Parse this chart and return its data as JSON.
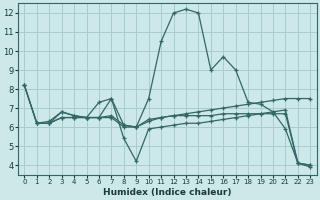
{
  "xlabel": "Humidex (Indice chaleur)",
  "bg_color": "#cce8e8",
  "grid_color": "#aacccc",
  "line_color": "#336666",
  "xlim": [
    -0.5,
    23.5
  ],
  "ylim": [
    3.5,
    12.5
  ],
  "xticks": [
    0,
    1,
    2,
    3,
    4,
    5,
    6,
    7,
    8,
    9,
    10,
    11,
    12,
    13,
    14,
    15,
    16,
    17,
    18,
    19,
    20,
    21,
    22,
    23
  ],
  "yticks": [
    4,
    5,
    6,
    7,
    8,
    9,
    10,
    11,
    12
  ],
  "lines": [
    {
      "x": [
        0,
        1,
        2,
        3,
        4,
        5,
        6,
        7,
        8,
        9,
        10,
        11,
        12,
        13,
        14,
        15,
        16,
        17,
        18,
        19,
        20,
        21,
        22,
        23
      ],
      "y": [
        8.2,
        6.2,
        6.2,
        6.8,
        6.6,
        6.5,
        6.5,
        7.5,
        6.1,
        6.0,
        7.5,
        10.5,
        12.0,
        12.2,
        12.0,
        9.0,
        9.7,
        9.0,
        7.3,
        7.2,
        6.8,
        5.9,
        4.1,
        3.9
      ]
    },
    {
      "x": [
        0,
        1,
        2,
        3,
        4,
        5,
        6,
        7,
        8,
        9,
        10,
        11,
        12,
        13,
        14,
        15,
        16,
        17,
        18,
        19,
        20,
        21,
        22,
        23
      ],
      "y": [
        8.2,
        6.2,
        6.2,
        6.5,
        6.5,
        6.5,
        6.5,
        6.6,
        6.1,
        6.0,
        6.3,
        6.5,
        6.6,
        6.7,
        6.8,
        6.9,
        7.0,
        7.1,
        7.2,
        7.3,
        7.4,
        7.5,
        7.5,
        7.5
      ]
    },
    {
      "x": [
        0,
        1,
        2,
        3,
        4,
        5,
        6,
        7,
        8,
        9,
        10,
        11,
        12,
        13,
        14,
        15,
        16,
        17,
        18,
        19,
        20,
        21,
        22,
        23
      ],
      "y": [
        8.2,
        6.2,
        6.3,
        6.8,
        6.6,
        6.5,
        7.3,
        7.5,
        5.4,
        4.2,
        5.9,
        6.0,
        6.1,
        6.2,
        6.2,
        6.3,
        6.4,
        6.5,
        6.6,
        6.7,
        6.8,
        6.9,
        4.1,
        4.0
      ]
    },
    {
      "x": [
        2,
        3,
        4,
        5,
        6,
        7,
        8,
        9,
        10,
        11,
        12,
        13,
        14,
        15,
        16,
        17,
        18,
        19,
        20,
        21,
        22,
        23
      ],
      "y": [
        6.2,
        6.5,
        6.5,
        6.5,
        6.5,
        6.5,
        6.0,
        6.0,
        6.4,
        6.5,
        6.6,
        6.6,
        6.6,
        6.6,
        6.7,
        6.7,
        6.7,
        6.7,
        6.7,
        6.7,
        4.1,
        4.0
      ]
    }
  ]
}
